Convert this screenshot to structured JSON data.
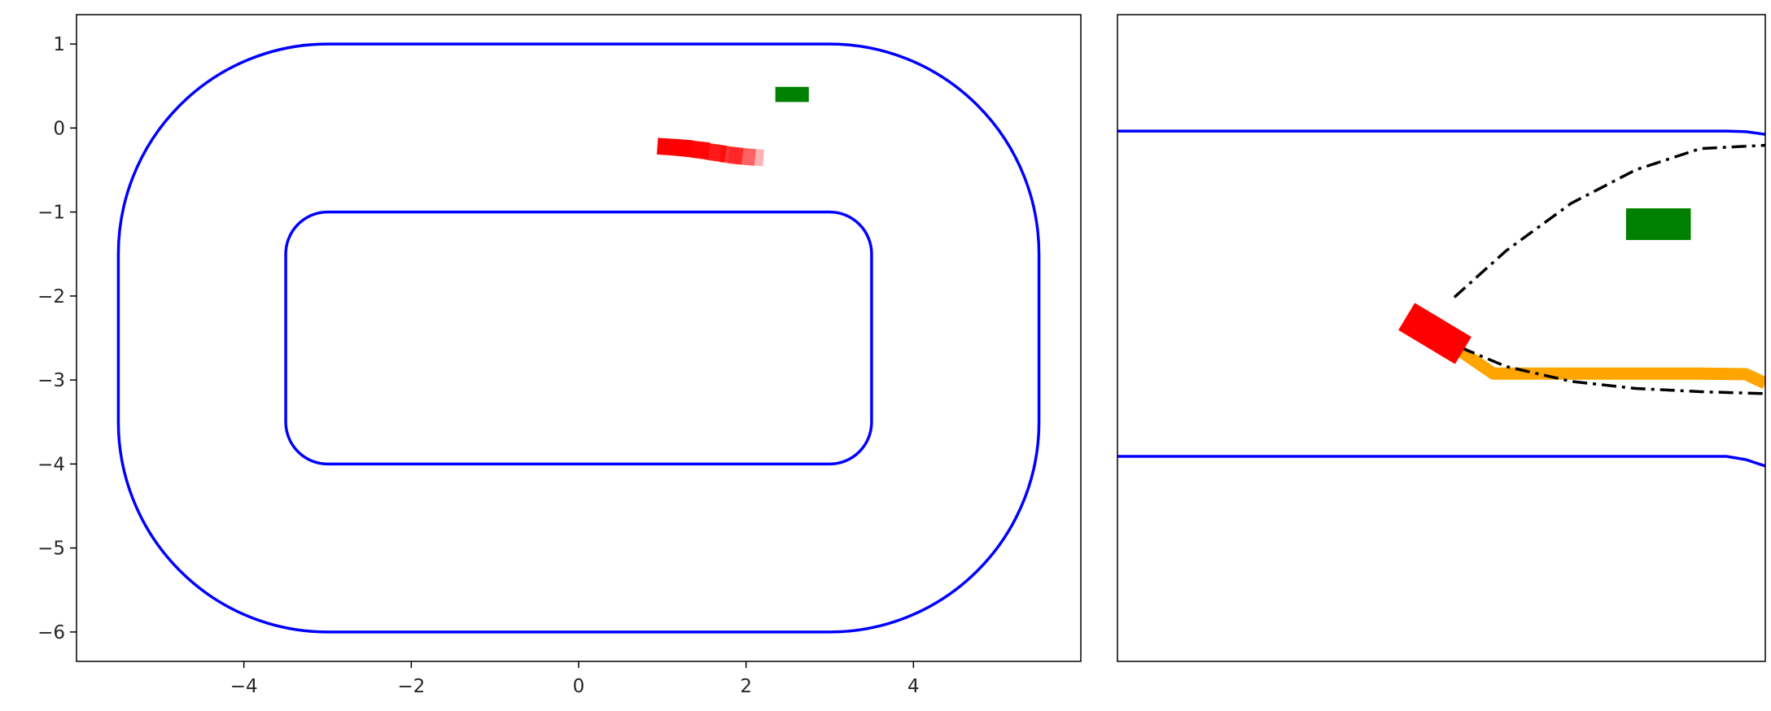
{
  "chart_data": [
    {
      "type": "line",
      "title": "",
      "xlabel": "",
      "ylabel": "",
      "xlim": [
        -6.0,
        6.0
      ],
      "ylim": [
        -6.35,
        1.35
      ],
      "x_ticks": [
        {
          "value": -4,
          "label": "−4"
        },
        {
          "value": -2,
          "label": "−2"
        },
        {
          "value": 0,
          "label": "0"
        },
        {
          "value": 2,
          "label": "2"
        },
        {
          "value": 4,
          "label": "4"
        }
      ],
      "y_ticks": [
        {
          "value": 1,
          "label": "1"
        },
        {
          "value": 0,
          "label": "0"
        },
        {
          "value": -1,
          "label": "−1"
        },
        {
          "value": -2,
          "label": "−2"
        },
        {
          "value": -3,
          "label": "−3"
        },
        {
          "value": -4,
          "label": "−4"
        },
        {
          "value": -5,
          "label": "−5"
        },
        {
          "value": -6,
          "label": "−6"
        }
      ],
      "grid": false,
      "track": {
        "color": "#0000ff",
        "outer": {
          "x_min": -5.5,
          "x_max": 5.5,
          "y_min": -6.0,
          "y_max": 1.0,
          "corner_radius": 2.5
        },
        "inner": {
          "x_min": -3.5,
          "x_max": 3.5,
          "y_min": -4.0,
          "y_max": -1.0,
          "corner_radius": 0.5
        }
      },
      "ego_trail": {
        "color": "#ff0000",
        "length": 0.42,
        "width": 0.2,
        "poses": [
          {
            "x": 1.15,
            "y": -0.23,
            "heading_deg": -4,
            "opacity": 1.0
          },
          {
            "x": 1.35,
            "y": -0.25,
            "heading_deg": -6,
            "opacity": 0.9
          },
          {
            "x": 1.55,
            "y": -0.28,
            "heading_deg": -8,
            "opacity": 0.75
          },
          {
            "x": 1.75,
            "y": -0.31,
            "heading_deg": -8,
            "opacity": 0.6
          },
          {
            "x": 1.9,
            "y": -0.33,
            "heading_deg": -6,
            "opacity": 0.45
          },
          {
            "x": 2.0,
            "y": -0.34,
            "heading_deg": -4,
            "opacity": 0.3
          }
        ]
      },
      "opponent": {
        "color": "#008000",
        "x": 2.55,
        "y": 0.4,
        "length": 0.4,
        "width": 0.18,
        "heading_deg": 0
      }
    },
    {
      "type": "line",
      "title": "",
      "xlabel": "",
      "ylabel": "",
      "xlim": [
        0,
        100
      ],
      "ylim": [
        0,
        100
      ],
      "axes_ticks": false,
      "lane_boundaries": {
        "color": "#0000ff",
        "top": [
          [
            0,
            82.0
          ],
          [
            94,
            82.0
          ],
          [
            97,
            81.9
          ],
          [
            100,
            81.5
          ]
        ],
        "bottom": [
          [
            0,
            31.7
          ],
          [
            94,
            31.7
          ],
          [
            97,
            31.2
          ],
          [
            100,
            30.2
          ]
        ]
      },
      "planned_paths": {
        "color": "#000000",
        "style": "dash-dot",
        "upper": [
          [
            52,
            56.3
          ],
          [
            60,
            63.5
          ],
          [
            70,
            70.8
          ],
          [
            80,
            76.0
          ],
          [
            90,
            79.3
          ],
          [
            100,
            79.8
          ]
        ],
        "lower": [
          [
            53,
            48.5
          ],
          [
            60,
            45.6
          ],
          [
            70,
            43.3
          ],
          [
            80,
            42.2
          ],
          [
            90,
            41.7
          ],
          [
            100,
            41.4
          ]
        ]
      },
      "reference_path": {
        "color": "#ffa500",
        "points": [
          [
            50,
            50.0
          ],
          [
            58,
            44.5
          ],
          [
            70,
            44.5
          ],
          [
            80,
            44.5
          ],
          [
            90,
            44.5
          ],
          [
            97,
            44.4
          ],
          [
            100,
            43.0
          ]
        ]
      },
      "ego": {
        "color": "#ff0000",
        "x": 49.0,
        "y": 50.7,
        "length": 10.2,
        "width": 4.9,
        "heading_deg": -31
      },
      "opponent": {
        "color": "#008000",
        "x": 83.5,
        "y": 67.6,
        "length": 10.0,
        "width": 4.9,
        "heading_deg": 0
      }
    }
  ]
}
